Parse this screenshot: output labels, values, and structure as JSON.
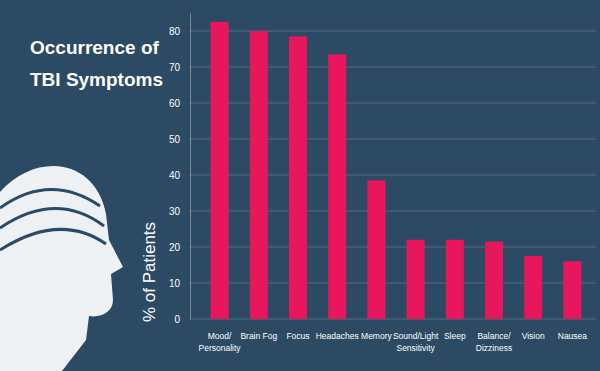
{
  "chart_data": {
    "type": "bar",
    "title": "Occurrence of\nTBI Symptoms",
    "y_label": "% of Patients",
    "categories": [
      "Mood/\nPersonality",
      "Brain Fog",
      "Focus",
      "Headaches",
      "Memory",
      "Sound/Light\nSensitivity",
      "Sleep",
      "Balance/\nDizziness",
      "Vision",
      "Nausea"
    ],
    "values": [
      82.5,
      80,
      78.5,
      73.5,
      38.5,
      22,
      22,
      21.5,
      17.5,
      16
    ],
    "color": "#e8175d",
    "ylim": [
      0,
      85
    ],
    "yticks": [
      0,
      10,
      20,
      30,
      40,
      50,
      60,
      70,
      80
    ],
    "grid": true
  }
}
